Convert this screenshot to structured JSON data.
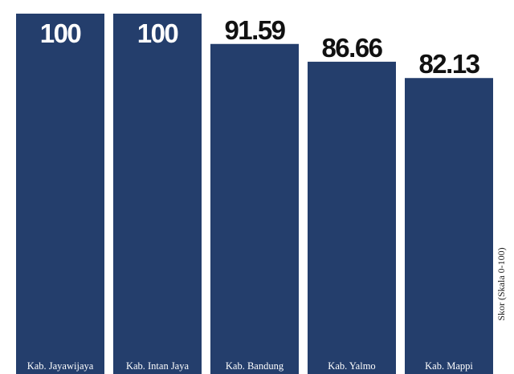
{
  "chart_data": {
    "type": "bar",
    "categories": [
      "Kab. Jayawijaya",
      "Kab. Intan Jaya",
      "Kab. Bandung",
      "Kab. Yalmo",
      "Kab. Mappi"
    ],
    "values": [
      100,
      100,
      91.59,
      86.66,
      82.13
    ],
    "value_labels": [
      "100",
      "100",
      "91.59",
      "86.66",
      "82.13"
    ],
    "ylabel": "Skor (Skala 0-100)",
    "ylim": [
      0,
      100
    ],
    "grid": false,
    "colors": {
      "bar": "#243e6c",
      "value_text_inside": "#ffffff",
      "value_text_outside": "#111111",
      "category_text": "#ffffff",
      "axis_text": "#222222"
    }
  }
}
